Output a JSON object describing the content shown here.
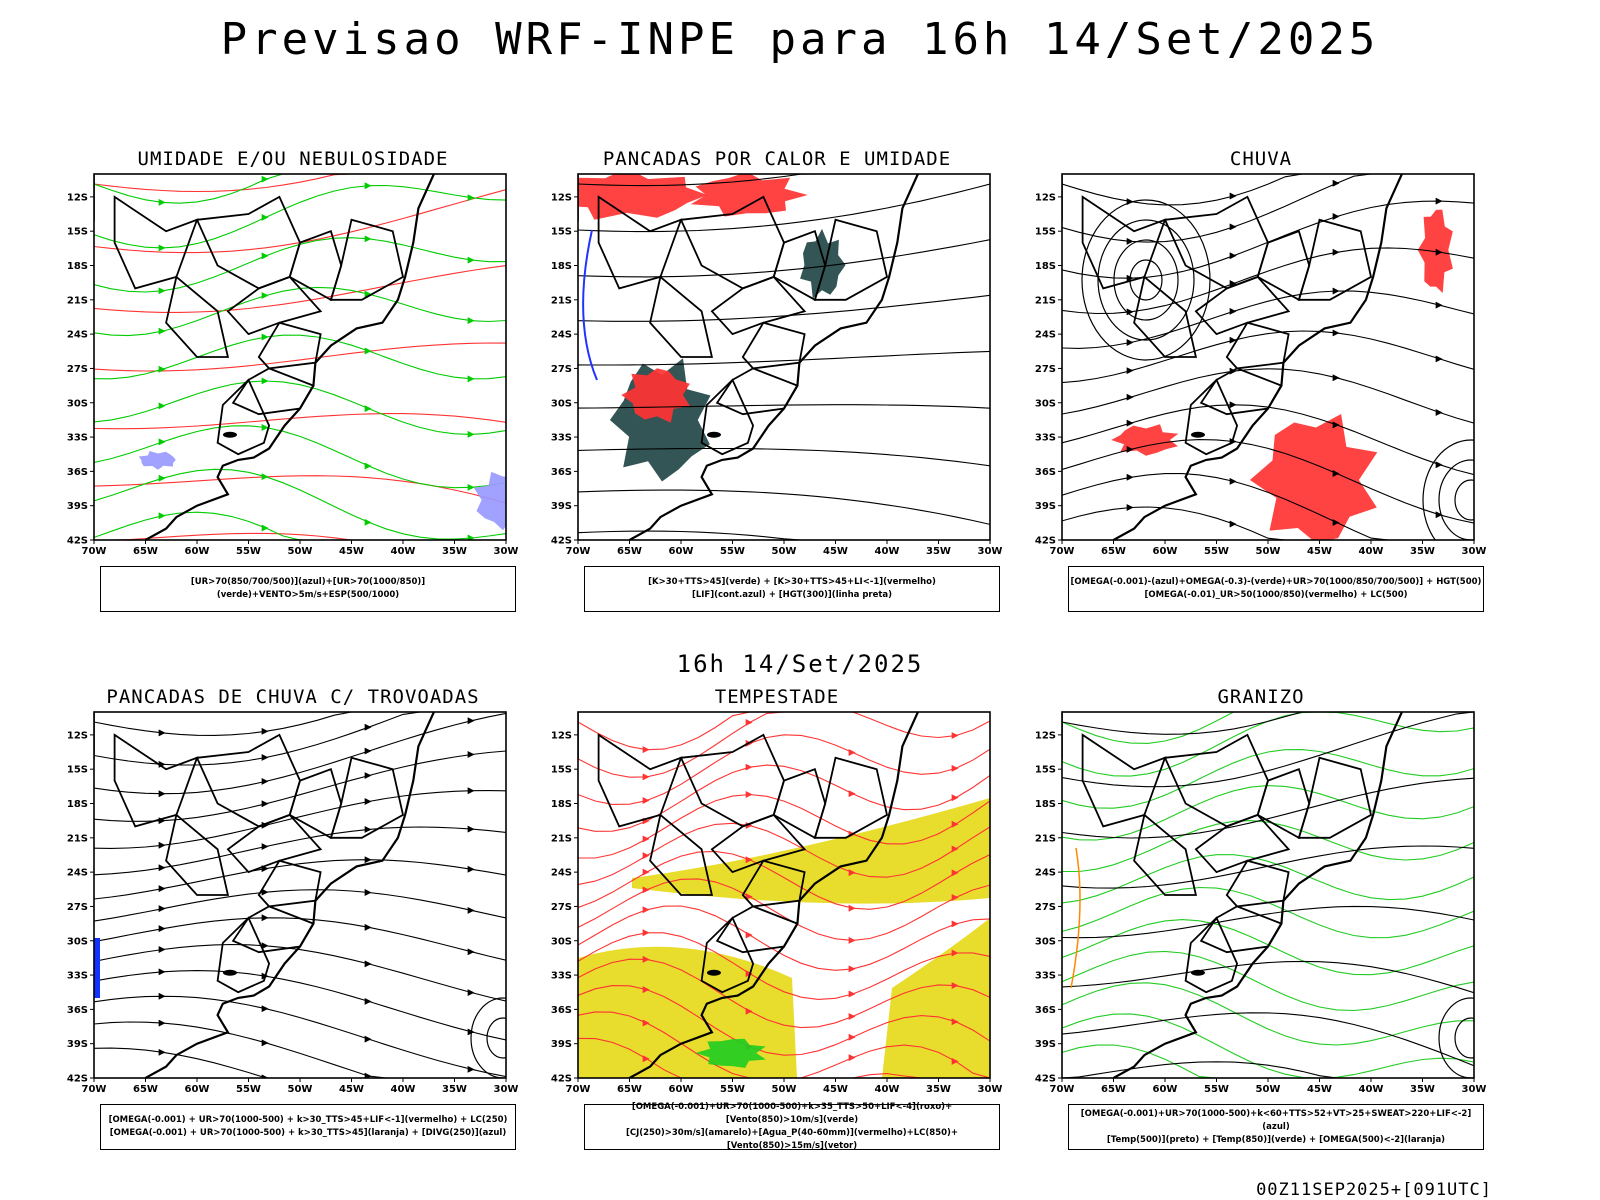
{
  "header": {
    "title": "Previsao WRF-INPE  para 16h 14/Set/2025",
    "mid_label": "16h 14/Set/2025",
    "run_stamp": "00Z11SEP2025+[091UTC]"
  },
  "axes": {
    "lat_ticks": [
      "12S",
      "15S",
      "18S",
      "21S",
      "24S",
      "27S",
      "30S",
      "33S",
      "36S",
      "39S",
      "42S"
    ],
    "lon_ticks": [
      "70W",
      "65W",
      "60W",
      "55W",
      "50W",
      "45W",
      "40W",
      "35W",
      "30W"
    ]
  },
  "panels": [
    {
      "title": "UMIDADE E/OU NEBULOSIDADE",
      "legend": [
        "[UR>70(850/700/500)](azul)+[UR>70(1000/850)](verde)+VENTO>5m/s+ESP(500/1000)"
      ],
      "colors": {
        "primary": "#ff3333",
        "secondary": "#00cc00",
        "tertiary": "#9999ff"
      }
    },
    {
      "title": "PANCADAS POR CALOR E UMIDADE",
      "legend": [
        "[K>30+TTS>45](verde) + [K>30+TTS>45+LI<-1](vermelho)",
        "[LIF](cont.azul) + [HGT(300)](linha preta)"
      ],
      "colors": {
        "primary": "#ff3333",
        "secondary": "#234646",
        "tertiary": "#2233ff"
      }
    },
    {
      "title": "CHUVA",
      "legend": [
        "[OMEGA(-0.001)-(azul)+OMEGA(-0.3)-(verde)+UR>70(1000/850/700/500)] + HGT(500)",
        "[OMEGA(-0.01)_UR>50(1000/850)(vermelho) + LC(500)"
      ],
      "colors": {
        "primary": "#ff3333",
        "secondary": "#1133ff",
        "tertiary": "#00aa00"
      }
    },
    {
      "title": "PANCADAS DE CHUVA C/ TROVOADAS",
      "legend": [
        "[OMEGA(-0.001) + UR>70(1000-500) + k>30_TTS>45+LIF<-1](vermelho) + LC(250)",
        "[OMEGA(-0.001) + UR>70(1000-500) + k>30_TTS>45](laranja) + [DIVG(250)](azul)"
      ],
      "colors": {
        "primary": "#1133ff",
        "secondary": "#000000",
        "tertiary": "#ff8800"
      }
    },
    {
      "title": "TEMPESTADE",
      "legend": [
        "[OMEGA(-0.001)+UR>70(1000-500)+k>35_TTS>50+LIF<-4](roxo)+[Vento(850)>10m/s](verde)",
        "[CJ(250)>30m/s](amarelo)+[Agua_P(40-60mm)](vermelho)+LC(850)+[Vento(850)>15m/s](vetor)"
      ],
      "colors": {
        "primary": "#e8dc2c",
        "secondary": "#ff3333",
        "tertiary": "#22cc22"
      }
    },
    {
      "title": "GRANIZO",
      "legend": [
        "[OMEGA(-0.001)+UR>70(1000-500)+k<60+TTS>52+VT>25+SWEAT>220+LIF<-2](azul)",
        "[Temp(500)](preto) + [Temp(850)](verde) + [OMEGA(500)<-2](laranja)"
      ],
      "colors": {
        "primary": "#22cc22",
        "secondary": "#000000",
        "tertiary": "#ff8800"
      }
    }
  ]
}
